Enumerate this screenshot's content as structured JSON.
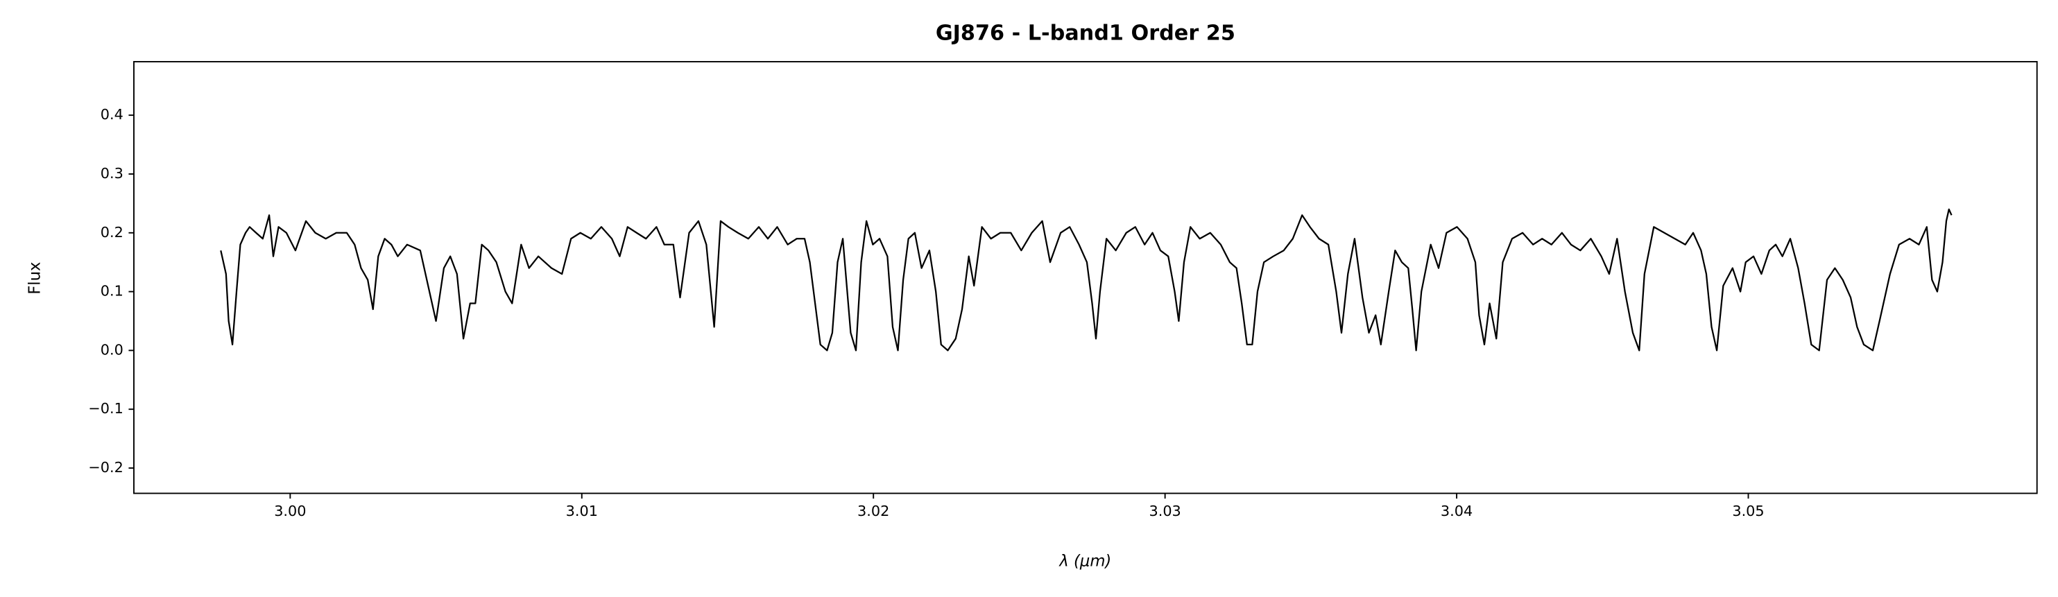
{
  "chart_data": {
    "type": "line",
    "title": "GJ876 - L-band1 Order 25",
    "xlabel": "λ (μm)",
    "ylabel": "Flux",
    "xlim": [
      2.99464,
      3.0599
    ],
    "ylim": [
      -0.243,
      0.491
    ],
    "xticks": [
      {
        "value": 3,
        "label": "3.00"
      },
      3.01,
      3.02,
      3.03,
      3.04,
      3.05
    ],
    "yticks": [
      {
        "value": -0.2,
        "label": "−0.2"
      },
      {
        "value": -0.1,
        "label": "−0.1"
      },
      {
        "value": 0,
        "label": "0.0"
      },
      0.1,
      0.2,
      0.3,
      0.4
    ],
    "grid": false,
    "series": [
      {
        "name": "GJ876",
        "color": "#000000",
        "x": [
          2.99762,
          2.9978,
          2.99789,
          2.99802,
          2.99816,
          2.99829,
          2.99847,
          2.99861,
          2.99883,
          2.99906,
          2.99928,
          2.99942,
          2.9996,
          2.99987,
          3.00018,
          3.00054,
          3.00086,
          3.00122,
          3.00158,
          3.00194,
          3.00221,
          3.00243,
          3.00266,
          3.00284,
          3.00302,
          3.00324,
          3.00347,
          3.00369,
          3.00401,
          3.00446,
          3.005,
          3.00527,
          3.00549,
          3.00572,
          3.00594,
          3.00617,
          3.00635,
          3.00657,
          3.0068,
          3.00707,
          3.00738,
          3.00761,
          3.00792,
          3.00819,
          3.00851,
          3.00896,
          3.00932,
          3.00963,
          3.00995,
          3.01031,
          3.01067,
          3.01103,
          3.0113,
          3.01157,
          3.01188,
          3.0122,
          3.01256,
          3.01283,
          3.01314,
          3.01337,
          3.01368,
          3.014,
          3.01427,
          3.01454,
          3.01476,
          3.01503,
          3.01535,
          3.01571,
          3.01607,
          3.01638,
          3.0167,
          3.01706,
          3.01737,
          3.01764,
          3.01782,
          3.018,
          3.01818,
          3.01841,
          3.01859,
          3.01877,
          3.01895,
          3.01922,
          3.0194,
          3.01958,
          3.01976,
          3.01998,
          3.02021,
          3.02048,
          3.02066,
          3.02084,
          3.02102,
          3.0212,
          3.02142,
          3.02165,
          3.02192,
          3.02214,
          3.02232,
          3.02255,
          3.02282,
          3.02304,
          3.02327,
          3.02345,
          3.02372,
          3.02403,
          3.02435,
          3.02471,
          3.02507,
          3.02543,
          3.02579,
          3.02606,
          3.02642,
          3.02673,
          3.02705,
          3.02732,
          3.0275,
          3.02763,
          3.02777,
          3.02799,
          3.02831,
          3.02867,
          3.02898,
          3.0293,
          3.02957,
          3.02984,
          3.03011,
          3.03033,
          3.03047,
          3.03065,
          3.03087,
          3.03119,
          3.03155,
          3.03191,
          3.03222,
          3.03245,
          3.03263,
          3.03281,
          3.03299,
          3.03317,
          3.03339,
          3.03371,
          3.03407,
          3.03438,
          3.0347,
          3.03497,
          3.03528,
          3.0356,
          3.03587,
          3.03605,
          3.03627,
          3.0365,
          3.03677,
          3.03699,
          3.03722,
          3.0374,
          3.03767,
          3.03789,
          3.03812,
          3.03834,
          3.03848,
          3.03861,
          3.03879,
          3.03911,
          3.03938,
          3.03965,
          3.04001,
          3.04037,
          3.04064,
          3.04077,
          3.04095,
          3.04113,
          3.04136,
          3.04158,
          3.0419,
          3.04226,
          3.04262,
          3.04293,
          3.04325,
          3.04361,
          3.04392,
          3.04424,
          3.0446,
          3.04496,
          3.04523,
          3.0455,
          3.04577,
          3.04604,
          3.04626,
          3.04644,
          3.04676,
          3.04712,
          3.04748,
          3.04784,
          3.04811,
          3.04838,
          3.04856,
          3.04874,
          3.04892,
          3.04914,
          3.04946,
          3.04973,
          3.04991,
          3.05018,
          3.05045,
          3.05072,
          3.05094,
          3.05117,
          3.05144,
          3.05171,
          3.05193,
          3.05216,
          3.05243,
          3.0527,
          3.05297,
          3.05324,
          3.05351,
          3.05373,
          3.05396,
          3.05427,
          3.0545,
          3.05486,
          3.05517,
          3.05553,
          3.05585,
          3.05612,
          3.0563,
          3.05648,
          3.05666,
          3.05679,
          3.05688,
          3.05697
        ],
        "values": [
          0.17,
          0.13,
          0.05,
          0.01,
          0.1,
          0.18,
          0.2,
          0.21,
          0.2,
          0.19,
          0.23,
          0.16,
          0.21,
          0.2,
          0.17,
          0.22,
          0.2,
          0.19,
          0.2,
          0.2,
          0.18,
          0.14,
          0.12,
          0.07,
          0.16,
          0.19,
          0.18,
          0.16,
          0.18,
          0.17,
          0.05,
          0.14,
          0.16,
          0.13,
          0.02,
          0.08,
          0.08,
          0.18,
          0.17,
          0.15,
          0.1,
          0.08,
          0.18,
          0.14,
          0.16,
          0.14,
          0.13,
          0.19,
          0.2,
          0.19,
          0.21,
          0.19,
          0.16,
          0.21,
          0.2,
          0.19,
          0.21,
          0.18,
          0.18,
          0.09,
          0.2,
          0.22,
          0.18,
          0.04,
          0.22,
          0.21,
          0.2,
          0.19,
          0.21,
          0.19,
          0.21,
          0.18,
          0.19,
          0.19,
          0.15,
          0.08,
          0.01,
          0,
          0.03,
          0.15,
          0.19,
          0.03,
          0,
          0.15,
          0.22,
          0.18,
          0.19,
          0.16,
          0.04,
          0,
          0.12,
          0.19,
          0.2,
          0.14,
          0.17,
          0.1,
          0.01,
          0,
          0.02,
          0.07,
          0.16,
          0.11,
          0.21,
          0.19,
          0.2,
          0.2,
          0.17,
          0.2,
          0.22,
          0.15,
          0.2,
          0.21,
          0.18,
          0.15,
          0.08,
          0.02,
          0.1,
          0.19,
          0.17,
          0.2,
          0.21,
          0.18,
          0.2,
          0.17,
          0.16,
          0.1,
          0.05,
          0.15,
          0.21,
          0.19,
          0.2,
          0.18,
          0.15,
          0.14,
          0.08,
          0.01,
          0.01,
          0.1,
          0.15,
          0.16,
          0.17,
          0.19,
          0.23,
          0.21,
          0.19,
          0.18,
          0.1,
          0.03,
          0.13,
          0.19,
          0.09,
          0.03,
          0.06,
          0.01,
          0.1,
          0.17,
          0.15,
          0.14,
          0.07,
          0,
          0.1,
          0.18,
          0.14,
          0.2,
          0.21,
          0.19,
          0.15,
          0.06,
          0.01,
          0.08,
          0.02,
          0.15,
          0.19,
          0.2,
          0.18,
          0.19,
          0.18,
          0.2,
          0.18,
          0.17,
          0.19,
          0.16,
          0.13,
          0.19,
          0.1,
          0.03,
          0,
          0.13,
          0.21,
          0.2,
          0.19,
          0.18,
          0.2,
          0.17,
          0.13,
          0.04,
          0,
          0.11,
          0.14,
          0.1,
          0.15,
          0.16,
          0.13,
          0.17,
          0.18,
          0.16,
          0.19,
          0.14,
          0.08,
          0.01,
          0,
          0.12,
          0.14,
          0.12,
          0.09,
          0.04,
          0.01,
          0,
          0.05,
          0.13,
          0.18,
          0.19,
          0.18,
          0.21,
          0.12,
          0.1,
          0.15,
          0.22,
          0.24,
          0.23
        ]
      }
    ]
  }
}
